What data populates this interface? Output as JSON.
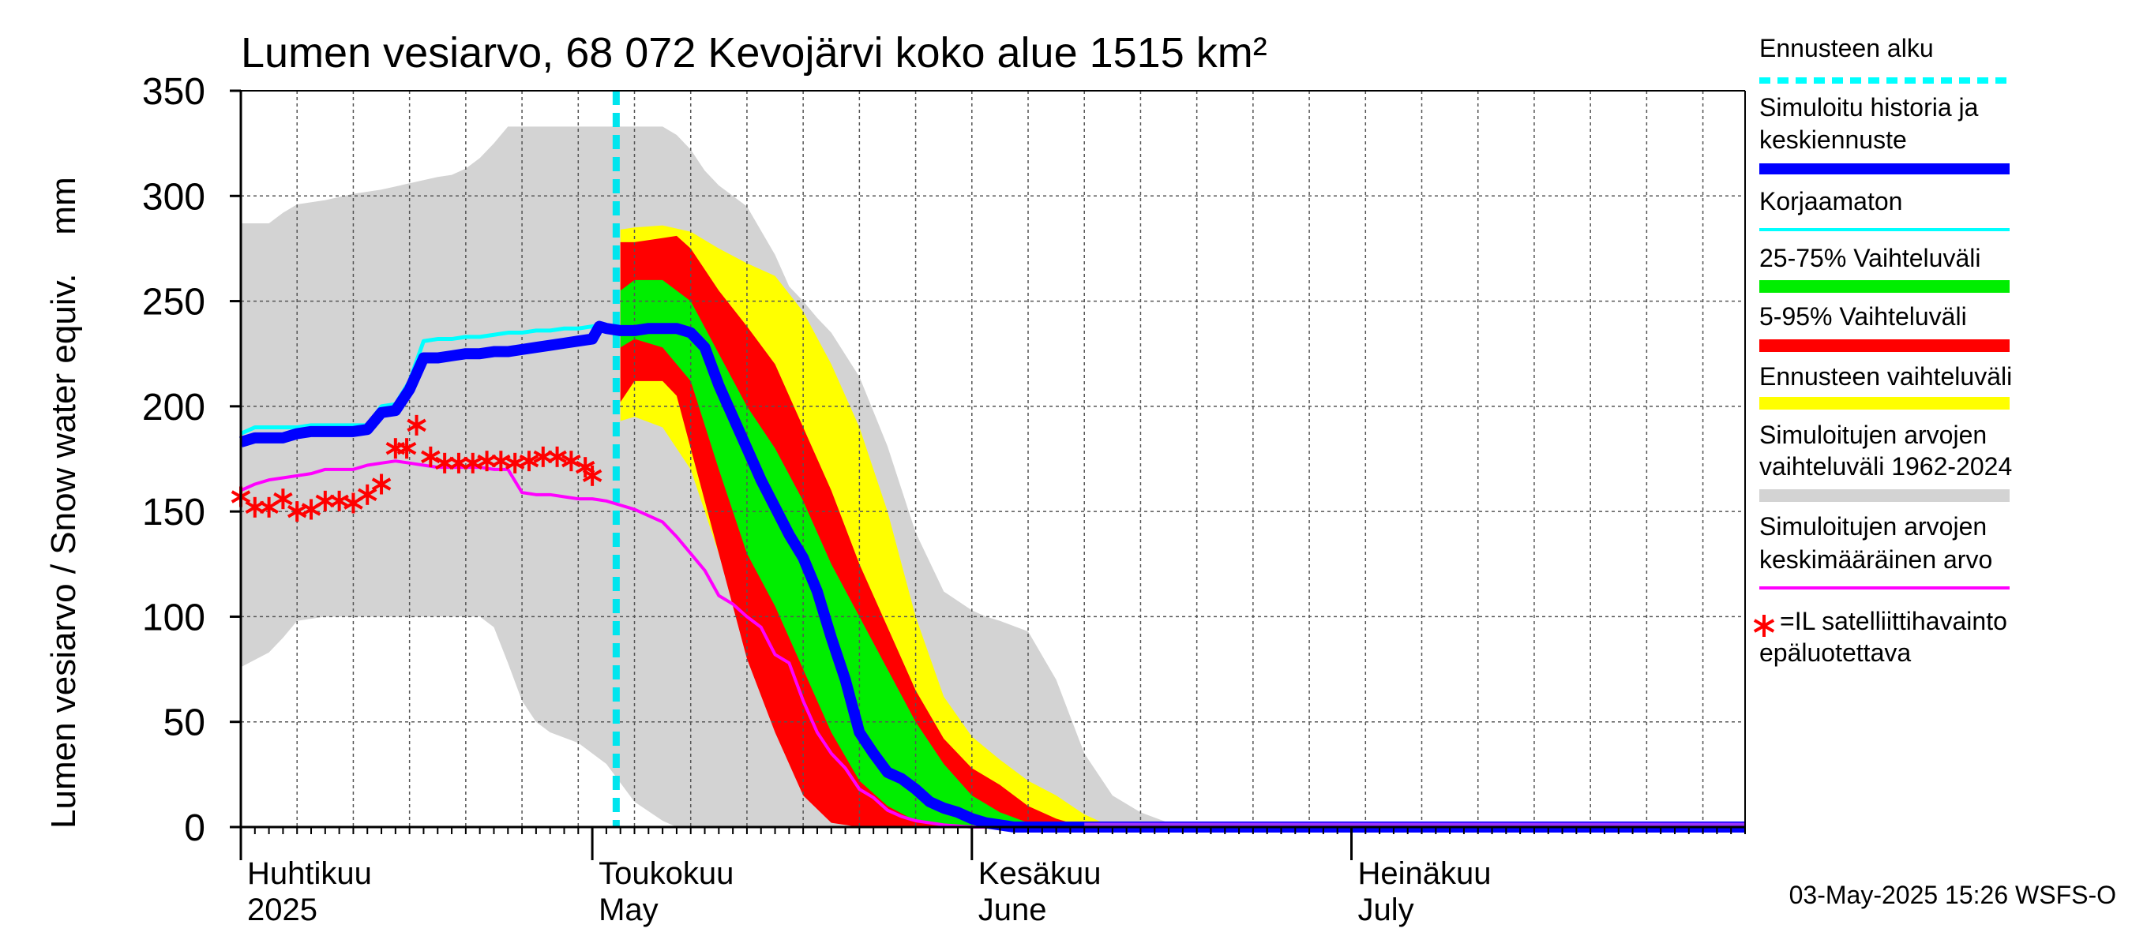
{
  "chart_data": {
    "type": "area",
    "title": "Lumen vesiarvo, 68 072 Kevojärvi koko alue 1515 km²",
    "ylabel": "Lumen vesiarvo / Snow water equiv.    mm",
    "xlabel": "",
    "ylim": [
      0,
      350
    ],
    "y_ticks": [
      "0",
      "50",
      "100",
      "150",
      "200",
      "250",
      "300",
      "350"
    ],
    "x_range_days": [
      0,
      107
    ],
    "x_axis_note": "day 0 = 2025-03-31",
    "month_labels": [
      {
        "day": 1,
        "fi": "Huhtikuu",
        "en": "2025"
      },
      {
        "day": 26,
        "fi": "Toukokuu",
        "en": "May"
      },
      {
        "day": 53,
        "fi": "Kesäkuu",
        "en": "June"
      },
      {
        "day": 80,
        "fi": "Heinäkuu",
        "en": "July"
      }
    ],
    "forecast_start_day": 26.7,
    "series": [
      {
        "name": "Simuloitujen arvojen vaihteluväli 1962-2024",
        "kind": "band",
        "color": "#d3d3d3",
        "x": [
          0,
          2,
          3,
          4,
          6,
          8,
          10,
          12,
          14,
          15,
          16,
          17,
          18,
          19,
          20,
          21,
          22,
          24,
          26,
          28,
          30,
          31,
          32,
          33,
          34,
          35,
          36,
          38,
          39,
          40,
          41,
          42,
          44,
          46,
          48,
          50,
          52,
          53,
          54,
          56,
          58,
          60,
          62,
          64,
          66,
          68,
          70,
          107
        ],
        "upper": [
          287,
          287,
          292,
          296,
          298,
          301,
          303,
          306,
          309,
          310,
          313,
          318,
          325,
          333,
          333,
          333,
          333,
          333,
          333,
          333,
          333,
          329,
          322,
          312,
          305,
          300,
          295,
          272,
          257,
          250,
          242,
          235,
          214,
          181,
          140,
          112,
          103,
          100,
          98,
          93,
          70,
          35,
          15,
          7,
          2,
          0,
          0,
          0
        ],
        "lower": [
          76,
          83,
          90,
          98,
          100,
          100,
          100,
          100,
          100,
          100,
          100,
          100,
          95,
          78,
          60,
          50,
          45,
          40,
          30,
          12,
          3,
          0,
          0,
          0,
          0,
          0,
          0,
          0,
          0,
          0,
          0,
          0,
          0,
          0,
          0,
          0,
          0,
          0,
          0,
          0,
          0,
          0,
          0,
          0,
          0,
          0,
          0,
          0
        ]
      },
      {
        "name": "Ennusteen vaihteluväli",
        "kind": "band",
        "color": "#ffff00",
        "x": [
          27,
          28,
          30,
          32,
          34,
          36,
          38,
          40,
          42,
          44,
          46,
          48,
          50,
          52,
          54,
          56,
          58,
          60,
          62
        ],
        "upper": [
          284,
          285,
          286,
          283,
          275,
          268,
          262,
          245,
          220,
          190,
          150,
          100,
          62,
          43,
          32,
          22,
          15,
          6,
          0
        ],
        "lower": [
          193,
          195,
          190,
          170,
          130,
          85,
          50,
          25,
          5,
          0,
          0,
          0,
          0,
          0,
          0,
          0,
          0,
          0,
          0
        ]
      },
      {
        "name": "5-95% Vaihteluväli",
        "kind": "band",
        "color": "#ff0000",
        "x": [
          27,
          28,
          30,
          31,
          32,
          34,
          36,
          38,
          40,
          42,
          44,
          46,
          48,
          50,
          52,
          54,
          56,
          58,
          60
        ],
        "upper": [
          278,
          278,
          280,
          281,
          275,
          255,
          238,
          220,
          190,
          160,
          125,
          95,
          65,
          42,
          28,
          20,
          10,
          4,
          0
        ],
        "lower": [
          202,
          212,
          212,
          205,
          180,
          130,
          80,
          45,
          15,
          2,
          0,
          0,
          0,
          0,
          0,
          0,
          0,
          0,
          0
        ]
      },
      {
        "name": "25-75% Vaihteluväli",
        "kind": "band",
        "color": "#00ee00",
        "x": [
          27,
          28,
          30,
          32,
          34,
          36,
          38,
          40,
          42,
          44,
          46,
          48,
          50,
          52,
          54,
          56,
          58
        ],
        "upper": [
          255,
          260,
          260,
          250,
          225,
          200,
          180,
          155,
          125,
          100,
          75,
          50,
          30,
          15,
          7,
          2,
          0
        ],
        "lower": [
          228,
          232,
          228,
          212,
          170,
          130,
          105,
          75,
          45,
          22,
          10,
          3,
          0,
          0,
          0,
          0,
          0
        ]
      },
      {
        "name": "Simuloitujen arvojen keskimääräinen arvo",
        "kind": "line",
        "color": "#ff00ff",
        "x": [
          0,
          1,
          2,
          3,
          4,
          5,
          6,
          7,
          8,
          9,
          10,
          11,
          12,
          13,
          14,
          15,
          16,
          17,
          18,
          19,
          20,
          21,
          22,
          23,
          24,
          25,
          26,
          27,
          28,
          29,
          30,
          31,
          32,
          33,
          34,
          35,
          36,
          37,
          38,
          39,
          40,
          41,
          42,
          43,
          44,
          45,
          46,
          47,
          48,
          50,
          52,
          55,
          107
        ],
        "y": [
          160,
          163,
          165,
          166,
          167,
          168,
          170,
          170,
          170,
          172,
          173,
          174,
          173,
          172,
          171,
          171,
          171,
          171,
          170,
          170,
          159,
          158,
          158,
          157,
          156,
          156,
          155,
          153,
          151,
          148,
          145,
          138,
          130,
          122,
          110,
          106,
          100,
          95,
          82,
          78,
          60,
          45,
          35,
          28,
          18,
          14,
          8,
          5,
          3,
          1,
          0,
          0,
          0
        ]
      },
      {
        "name": "Korjaamaton",
        "kind": "line",
        "color": "#00ffff",
        "x": [
          0,
          1,
          4,
          5,
          9,
          10,
          11,
          12,
          13,
          14,
          15,
          16,
          17,
          18,
          19,
          20,
          21,
          22,
          23,
          24,
          25,
          26
        ],
        "y": [
          187,
          190,
          190,
          191,
          191,
          200,
          201,
          212,
          231,
          232,
          232,
          233,
          233,
          234,
          235,
          235,
          236,
          236,
          237,
          237,
          238,
          239
        ]
      },
      {
        "name": "Simuloitu historia ja keskiennuste",
        "kind": "line",
        "color": "#0000ff",
        "x": [
          0,
          1,
          2,
          3,
          4,
          5,
          6,
          7,
          8,
          9,
          10,
          11,
          12,
          13,
          14,
          15,
          16,
          17,
          18,
          19,
          20,
          21,
          22,
          23,
          24,
          25,
          25.5,
          26,
          27,
          28,
          29,
          30,
          31,
          32,
          33,
          34,
          35,
          36,
          37,
          38,
          39,
          40,
          41,
          42,
          43,
          44,
          45,
          46,
          47,
          48,
          49,
          50,
          51,
          52,
          53,
          54,
          55,
          57,
          60,
          107
        ],
        "y": [
          183,
          185,
          185,
          185,
          187,
          188,
          188,
          188,
          188,
          189,
          197,
          198,
          208,
          223,
          223,
          224,
          225,
          225,
          226,
          226,
          227,
          228,
          229,
          230,
          231,
          232,
          238,
          237,
          236,
          236,
          237,
          237,
          237,
          235,
          228,
          210,
          195,
          180,
          165,
          152,
          139,
          128,
          112,
          90,
          70,
          45,
          35,
          26,
          23,
          18,
          12,
          9,
          7,
          4,
          2,
          1,
          0,
          0,
          0,
          0
        ]
      },
      {
        "name": "=IL satelliittihavainto epäluotettava",
        "kind": "markers",
        "color": "#ff0000",
        "x": [
          0,
          1,
          2,
          3,
          4,
          5,
          6,
          7,
          8,
          9,
          10,
          11,
          11.8,
          12.5,
          13.5,
          14.5,
          15.5,
          16.5,
          17.5,
          18.5,
          19.5,
          20.5,
          21.5,
          22.5,
          23.5,
          24.5,
          25
        ],
        "y": [
          157,
          152,
          152,
          156,
          150,
          151,
          155,
          155,
          154,
          158,
          163,
          180,
          180,
          191,
          176,
          173,
          173,
          173,
          174,
          174,
          173,
          174,
          176,
          176,
          174,
          171,
          167
        ]
      }
    ],
    "legend": [
      {
        "label_lines": [
          "Ennusteen alku"
        ],
        "symbol": "dashed",
        "color": "#00ffff"
      },
      {
        "label_lines": [
          "Simuloitu historia ja",
          "keskiennuste"
        ],
        "symbol": "thick",
        "color": "#0000ff"
      },
      {
        "label_lines": [
          "Korjaamaton"
        ],
        "symbol": "thin",
        "color": "#00ffff"
      },
      {
        "label_lines": [
          "25-75% Vaihteluväli"
        ],
        "symbol": "band",
        "color": "#00ee00"
      },
      {
        "label_lines": [
          "5-95% Vaihteluväli"
        ],
        "symbol": "band",
        "color": "#ff0000"
      },
      {
        "label_lines": [
          "Ennusteen vaihteluväli"
        ],
        "symbol": "band",
        "color": "#ffff00"
      },
      {
        "label_lines": [
          "Simuloitujen arvojen",
          "vaihteluväli 1962-2024"
        ],
        "symbol": "band",
        "color": "#d3d3d3"
      },
      {
        "label_lines": [
          "Simuloitujen arvojen",
          "keskimääräinen arvo"
        ],
        "symbol": "thin",
        "color": "#ff00ff"
      },
      {
        "label_lines": [
          "=IL satelliittihavainto",
          "epäluotettava"
        ],
        "symbol": "star",
        "color": "#ff0000"
      }
    ],
    "footer": "03-May-2025 15:26 WSFS-O"
  }
}
